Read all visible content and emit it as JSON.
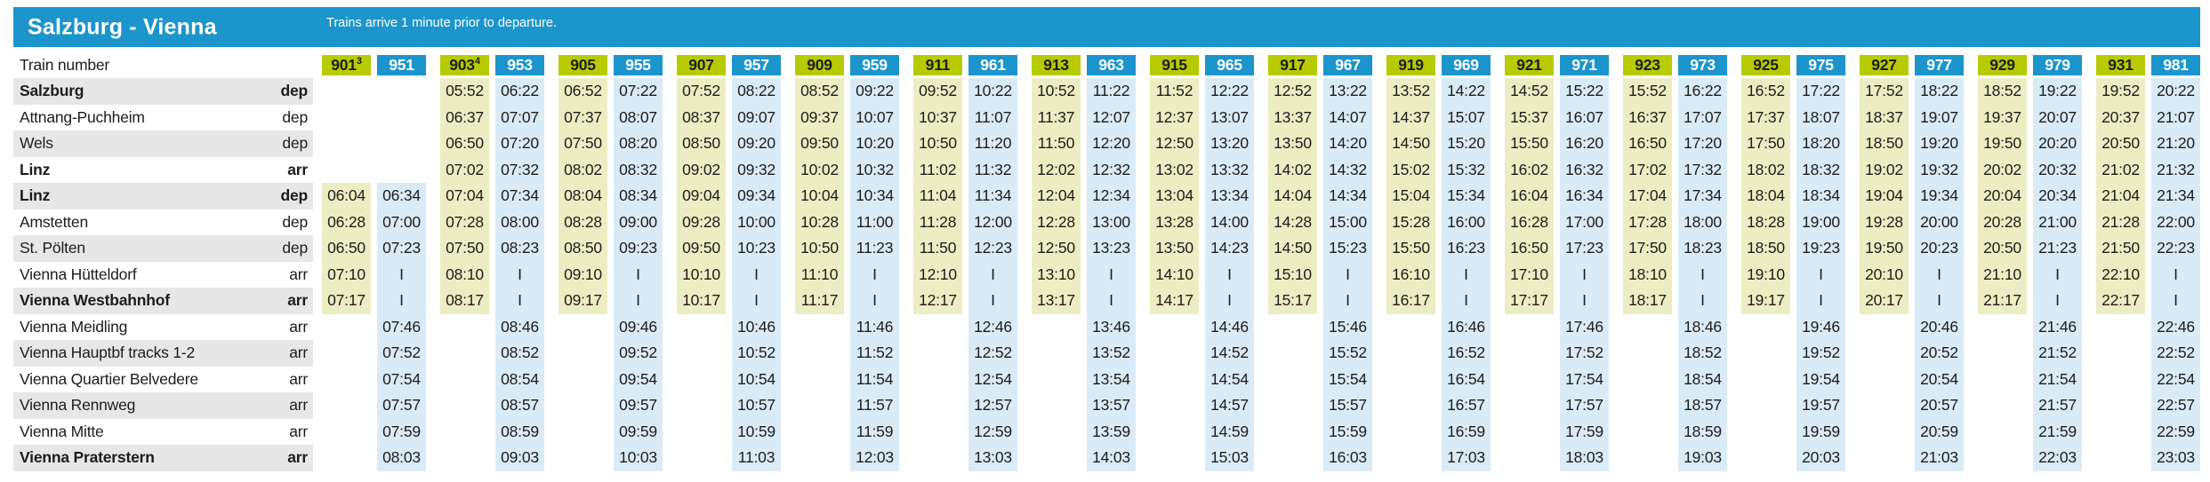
{
  "header": {
    "title": "Salzburg - Vienna",
    "note": "Trains arrive 1 minute prior to departure."
  },
  "colors": {
    "green": "#b7cb00",
    "blue": "#1b95cb",
    "light_green": "#ededc3",
    "light_blue": "#d9ebf7",
    "row_stripe": "#e7e7e7"
  },
  "table": {
    "train_number_label": "Train number",
    "skip_marker": "I",
    "stations": [
      {
        "name": "Salzburg",
        "type": "dep",
        "bold": true
      },
      {
        "name": "Attnang-Puchheim",
        "type": "dep",
        "bold": false
      },
      {
        "name": "Wels",
        "type": "dep",
        "bold": false
      },
      {
        "name": "Linz",
        "type": "arr",
        "bold": true
      },
      {
        "name": "Linz",
        "type": "dep",
        "bold": true
      },
      {
        "name": "Amstetten",
        "type": "dep",
        "bold": false
      },
      {
        "name": "St. Pölten",
        "type": "dep",
        "bold": false
      },
      {
        "name": "Vienna Hütteldorf",
        "type": "arr",
        "bold": false
      },
      {
        "name": "Vienna Westbahnhof",
        "type": "arr",
        "bold": true
      },
      {
        "name": "Vienna Meidling",
        "type": "arr",
        "bold": false
      },
      {
        "name": "Vienna Hauptbf tracks 1-2",
        "type": "arr",
        "bold": false
      },
      {
        "name": "Vienna Quartier Belvedere",
        "type": "arr",
        "bold": false
      },
      {
        "name": "Vienna Rennweg",
        "type": "arr",
        "bold": false
      },
      {
        "name": "Vienna Mitte",
        "type": "arr",
        "bold": false
      },
      {
        "name": "Vienna Praterstern",
        "type": "arr",
        "bold": true
      }
    ],
    "trains": [
      {
        "number": "901",
        "sup": "3",
        "color": "green",
        "times": [
          "",
          "",
          "",
          "",
          "06:04",
          "06:28",
          "06:50",
          "07:10",
          "07:17",
          "",
          "",
          "",
          "",
          "",
          ""
        ]
      },
      {
        "number": "951",
        "sup": "",
        "color": "blue",
        "times": [
          "",
          "",
          "",
          "",
          "06:34",
          "07:00",
          "07:23",
          "I",
          "I",
          "07:46",
          "07:52",
          "07:54",
          "07:57",
          "07:59",
          "08:03"
        ]
      },
      {
        "number": "903",
        "sup": "4",
        "color": "green",
        "times": [
          "05:52",
          "06:37",
          "06:50",
          "07:02",
          "07:04",
          "07:28",
          "07:50",
          "08:10",
          "08:17",
          "",
          "",
          "",
          "",
          "",
          ""
        ]
      },
      {
        "number": "953",
        "sup": "",
        "color": "blue",
        "times": [
          "06:22",
          "07:07",
          "07:20",
          "07:32",
          "07:34",
          "08:00",
          "08:23",
          "I",
          "I",
          "08:46",
          "08:52",
          "08:54",
          "08:57",
          "08:59",
          "09:03"
        ]
      },
      {
        "number": "905",
        "sup": "",
        "color": "green",
        "times": [
          "06:52",
          "07:37",
          "07:50",
          "08:02",
          "08:04",
          "08:28",
          "08:50",
          "09:10",
          "09:17",
          "",
          "",
          "",
          "",
          "",
          ""
        ]
      },
      {
        "number": "955",
        "sup": "",
        "color": "blue",
        "times": [
          "07:22",
          "08:07",
          "08:20",
          "08:32",
          "08:34",
          "09:00",
          "09:23",
          "I",
          "I",
          "09:46",
          "09:52",
          "09:54",
          "09:57",
          "09:59",
          "10:03"
        ]
      },
      {
        "number": "907",
        "sup": "",
        "color": "green",
        "times": [
          "07:52",
          "08:37",
          "08:50",
          "09:02",
          "09:04",
          "09:28",
          "09:50",
          "10:10",
          "10:17",
          "",
          "",
          "",
          "",
          "",
          ""
        ]
      },
      {
        "number": "957",
        "sup": "",
        "color": "blue",
        "times": [
          "08:22",
          "09:07",
          "09:20",
          "09:32",
          "09:34",
          "10:00",
          "10:23",
          "I",
          "I",
          "10:46",
          "10:52",
          "10:54",
          "10:57",
          "10:59",
          "11:03"
        ]
      },
      {
        "number": "909",
        "sup": "",
        "color": "green",
        "times": [
          "08:52",
          "09:37",
          "09:50",
          "10:02",
          "10:04",
          "10:28",
          "10:50",
          "11:10",
          "11:17",
          "",
          "",
          "",
          "",
          "",
          ""
        ]
      },
      {
        "number": "959",
        "sup": "",
        "color": "blue",
        "times": [
          "09:22",
          "10:07",
          "10:20",
          "10:32",
          "10:34",
          "11:00",
          "11:23",
          "I",
          "I",
          "11:46",
          "11:52",
          "11:54",
          "11:57",
          "11:59",
          "12:03"
        ]
      },
      {
        "number": "911",
        "sup": "",
        "color": "green",
        "times": [
          "09:52",
          "10:37",
          "10:50",
          "11:02",
          "11:04",
          "11:28",
          "11:50",
          "12:10",
          "12:17",
          "",
          "",
          "",
          "",
          "",
          ""
        ]
      },
      {
        "number": "961",
        "sup": "",
        "color": "blue",
        "times": [
          "10:22",
          "11:07",
          "11:20",
          "11:32",
          "11:34",
          "12:00",
          "12:23",
          "I",
          "I",
          "12:46",
          "12:52",
          "12:54",
          "12:57",
          "12:59",
          "13:03"
        ]
      },
      {
        "number": "913",
        "sup": "",
        "color": "green",
        "times": [
          "10:52",
          "11:37",
          "11:50",
          "12:02",
          "12:04",
          "12:28",
          "12:50",
          "13:10",
          "13:17",
          "",
          "",
          "",
          "",
          "",
          ""
        ]
      },
      {
        "number": "963",
        "sup": "",
        "color": "blue",
        "times": [
          "11:22",
          "12:07",
          "12:20",
          "12:32",
          "12:34",
          "13:00",
          "13:23",
          "I",
          "I",
          "13:46",
          "13:52",
          "13:54",
          "13:57",
          "13:59",
          "14:03"
        ]
      },
      {
        "number": "915",
        "sup": "",
        "color": "green",
        "times": [
          "11:52",
          "12:37",
          "12:50",
          "13:02",
          "13:04",
          "13:28",
          "13:50",
          "14:10",
          "14:17",
          "",
          "",
          "",
          "",
          "",
          ""
        ]
      },
      {
        "number": "965",
        "sup": "",
        "color": "blue",
        "times": [
          "12:22",
          "13:07",
          "13:20",
          "13:32",
          "13:34",
          "14:00",
          "14:23",
          "I",
          "I",
          "14:46",
          "14:52",
          "14:54",
          "14:57",
          "14:59",
          "15:03"
        ]
      },
      {
        "number": "917",
        "sup": "",
        "color": "green",
        "times": [
          "12:52",
          "13:37",
          "13:50",
          "14:02",
          "14:04",
          "14:28",
          "14:50",
          "15:10",
          "15:17",
          "",
          "",
          "",
          "",
          "",
          ""
        ]
      },
      {
        "number": "967",
        "sup": "",
        "color": "blue",
        "times": [
          "13:22",
          "14:07",
          "14:20",
          "14:32",
          "14:34",
          "15:00",
          "15:23",
          "I",
          "I",
          "15:46",
          "15:52",
          "15:54",
          "15:57",
          "15:59",
          "16:03"
        ]
      },
      {
        "number": "919",
        "sup": "",
        "color": "green",
        "times": [
          "13:52",
          "14:37",
          "14:50",
          "15:02",
          "15:04",
          "15:28",
          "15:50",
          "16:10",
          "16:17",
          "",
          "",
          "",
          "",
          "",
          ""
        ]
      },
      {
        "number": "969",
        "sup": "",
        "color": "blue",
        "times": [
          "14:22",
          "15:07",
          "15:20",
          "15:32",
          "15:34",
          "16:00",
          "16:23",
          "I",
          "I",
          "16:46",
          "16:52",
          "16:54",
          "16:57",
          "16:59",
          "17:03"
        ]
      },
      {
        "number": "921",
        "sup": "",
        "color": "green",
        "times": [
          "14:52",
          "15:37",
          "15:50",
          "16:02",
          "16:04",
          "16:28",
          "16:50",
          "17:10",
          "17:17",
          "",
          "",
          "",
          "",
          "",
          ""
        ]
      },
      {
        "number": "971",
        "sup": "",
        "color": "blue",
        "times": [
          "15:22",
          "16:07",
          "16:20",
          "16:32",
          "16:34",
          "17:00",
          "17:23",
          "I",
          "I",
          "17:46",
          "17:52",
          "17:54",
          "17:57",
          "17:59",
          "18:03"
        ]
      },
      {
        "number": "923",
        "sup": "",
        "color": "green",
        "times": [
          "15:52",
          "16:37",
          "16:50",
          "17:02",
          "17:04",
          "17:28",
          "17:50",
          "18:10",
          "18:17",
          "",
          "",
          "",
          "",
          "",
          ""
        ]
      },
      {
        "number": "973",
        "sup": "",
        "color": "blue",
        "times": [
          "16:22",
          "17:07",
          "17:20",
          "17:32",
          "17:34",
          "18:00",
          "18:23",
          "I",
          "I",
          "18:46",
          "18:52",
          "18:54",
          "18:57",
          "18:59",
          "19:03"
        ]
      },
      {
        "number": "925",
        "sup": "",
        "color": "green",
        "times": [
          "16:52",
          "17:37",
          "17:50",
          "18:02",
          "18:04",
          "18:28",
          "18:50",
          "19:10",
          "19:17",
          "",
          "",
          "",
          "",
          "",
          ""
        ]
      },
      {
        "number": "975",
        "sup": "",
        "color": "blue",
        "times": [
          "17:22",
          "18:07",
          "18:20",
          "18:32",
          "18:34",
          "19:00",
          "19:23",
          "I",
          "I",
          "19:46",
          "19:52",
          "19:54",
          "19:57",
          "19:59",
          "20:03"
        ]
      },
      {
        "number": "927",
        "sup": "",
        "color": "green",
        "times": [
          "17:52",
          "18:37",
          "18:50",
          "19:02",
          "19:04",
          "19:28",
          "19:50",
          "20:10",
          "20:17",
          "",
          "",
          "",
          "",
          "",
          ""
        ]
      },
      {
        "number": "977",
        "sup": "",
        "color": "blue",
        "times": [
          "18:22",
          "19:07",
          "19:20",
          "19:32",
          "19:34",
          "20:00",
          "20:23",
          "I",
          "I",
          "20:46",
          "20:52",
          "20:54",
          "20:57",
          "20:59",
          "21:03"
        ]
      },
      {
        "number": "929",
        "sup": "",
        "color": "green",
        "times": [
          "18:52",
          "19:37",
          "19:50",
          "20:02",
          "20:04",
          "20:28",
          "20:50",
          "21:10",
          "21:17",
          "",
          "",
          "",
          "",
          "",
          ""
        ]
      },
      {
        "number": "979",
        "sup": "",
        "color": "blue",
        "times": [
          "19:22",
          "20:07",
          "20:20",
          "20:32",
          "20:34",
          "21:00",
          "21:23",
          "I",
          "I",
          "21:46",
          "21:52",
          "21:54",
          "21:57",
          "21:59",
          "22:03"
        ]
      },
      {
        "number": "931",
        "sup": "",
        "color": "green",
        "times": [
          "19:52",
          "20:37",
          "20:50",
          "21:02",
          "21:04",
          "21:28",
          "21:50",
          "22:10",
          "22:17",
          "",
          "",
          "",
          "",
          "",
          ""
        ]
      },
      {
        "number": "981",
        "sup": "",
        "color": "blue",
        "times": [
          "20:22",
          "21:07",
          "21:20",
          "21:32",
          "21:34",
          "22:00",
          "22:23",
          "I",
          "I",
          "22:46",
          "22:52",
          "22:54",
          "22:57",
          "22:59",
          "23:03"
        ]
      }
    ]
  }
}
